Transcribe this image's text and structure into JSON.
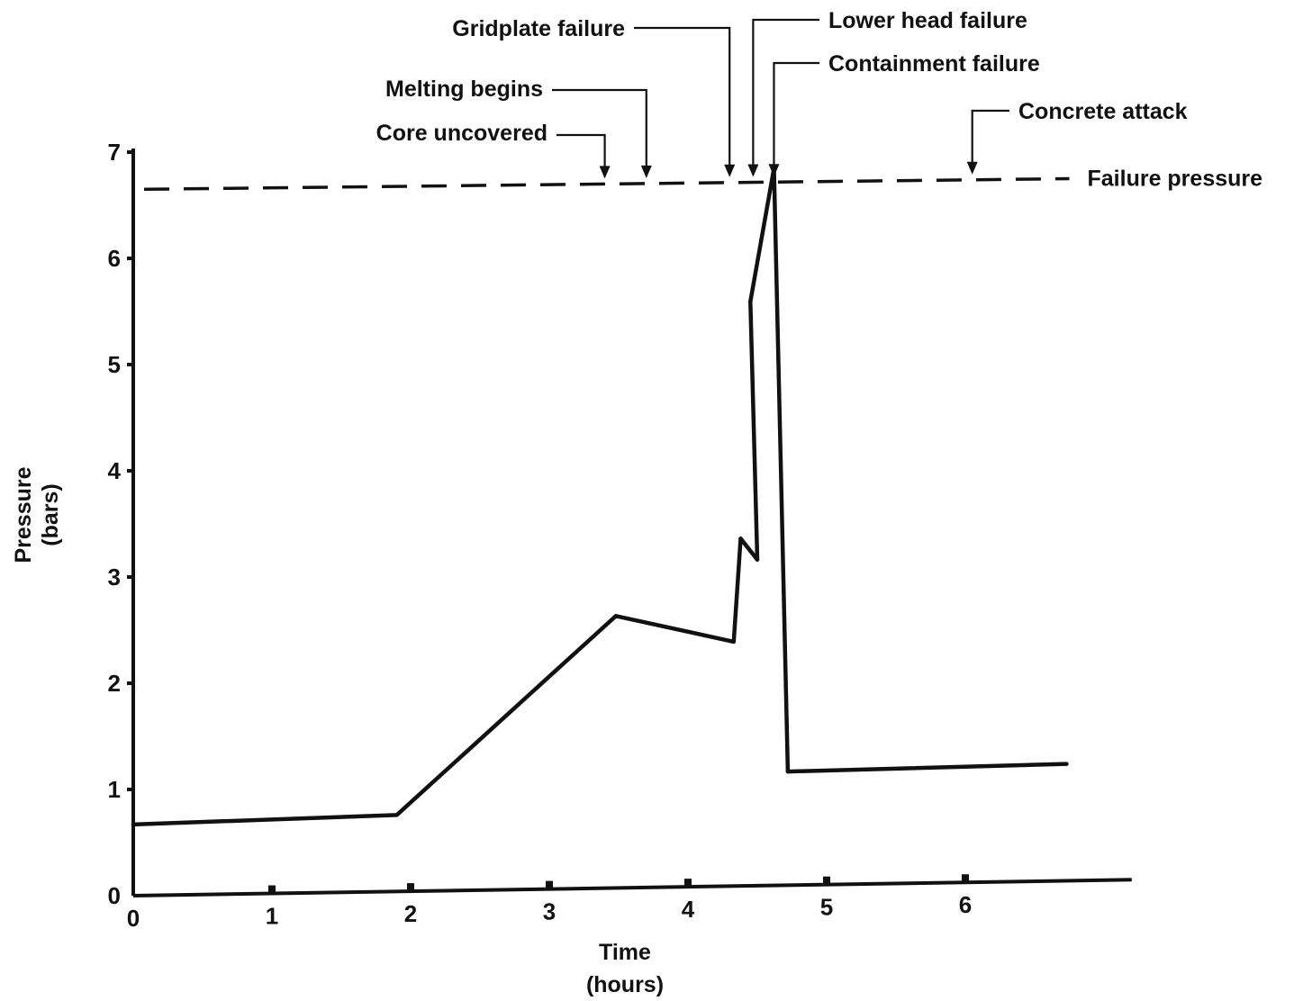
{
  "chart_data": {
    "type": "line",
    "title": "",
    "xlabel": "Time",
    "xunit": "(hours)",
    "ylabel": "Pressure",
    "yunit": "(bars)",
    "xlim": [
      0,
      7.2
    ],
    "ylim": [
      0,
      7
    ],
    "x_ticks": [
      "0",
      "1",
      "2",
      "3",
      "4",
      "5",
      "6"
    ],
    "y_ticks": [
      "0",
      "1",
      "2",
      "3",
      "4",
      "5",
      "6",
      "7"
    ],
    "grid": false,
    "series": [
      {
        "name": "",
        "style": "solid",
        "points": [
          {
            "x": 0.0,
            "y": 0.67
          },
          {
            "x": 1.9,
            "y": 0.72
          },
          {
            "x": 3.48,
            "y": 2.56
          },
          {
            "x": 4.33,
            "y": 2.3
          },
          {
            "x": 4.38,
            "y": 3.27
          },
          {
            "x": 4.5,
            "y": 3.07
          },
          {
            "x": 4.45,
            "y": 5.5
          },
          {
            "x": 4.62,
            "y": 6.75
          },
          {
            "x": 4.72,
            "y": 1.07
          },
          {
            "x": 6.73,
            "y": 1.1
          }
        ]
      }
    ],
    "reference_line": {
      "label": "Failure pressure",
      "style": "dashed",
      "points": [
        {
          "x": 0.0,
          "y": 6.65
        },
        {
          "x": 6.75,
          "y": 6.75
        }
      ]
    },
    "annotations": [
      {
        "label": "Core uncovered",
        "x": 3.4
      },
      {
        "label": "Melting begins",
        "x": 3.7
      },
      {
        "label": "Gridplate failure",
        "x": 4.3
      },
      {
        "label": "Lower head failure",
        "x": 4.47
      },
      {
        "label": "Containment failure",
        "x": 4.62
      },
      {
        "label": "Concrete attack",
        "x": 6.05
      }
    ]
  },
  "colors": {
    "ink": "#111111",
    "background": "#ffffff"
  }
}
